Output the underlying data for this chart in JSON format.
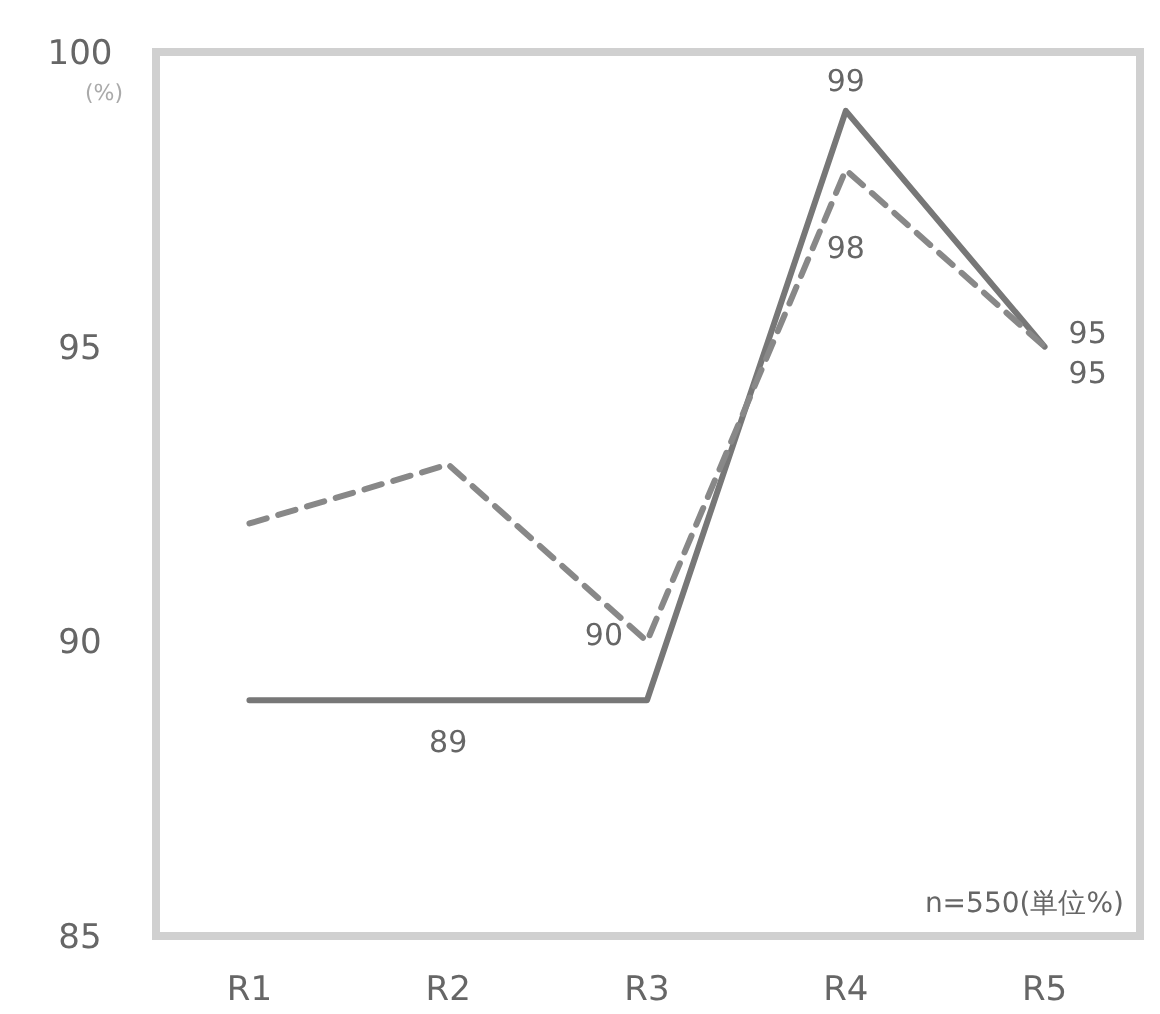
{
  "chart_data": {
    "type": "line",
    "ylabel": "(%)",
    "categories": [
      "R1",
      "R2",
      "R3",
      "R4",
      "R5"
    ],
    "series": [
      {
        "color": "#777777",
        "line_style": "solid",
        "values": [
          89,
          89,
          89,
          99,
          95
        ],
        "value_labels": [
          null,
          "89",
          null,
          "99",
          "95"
        ]
      },
      {
        "color": "#888888",
        "line_style": "dashed",
        "values": [
          92,
          93,
          90,
          98,
          95
        ],
        "value_labels": [
          null,
          null,
          "90",
          "98",
          "95"
        ]
      }
    ],
    "ylim": [
      85,
      100
    ],
    "yticks": [
      85,
      90,
      95,
      100
    ],
    "grid": false,
    "annotations": [
      "n=550(単位%)"
    ]
  }
}
